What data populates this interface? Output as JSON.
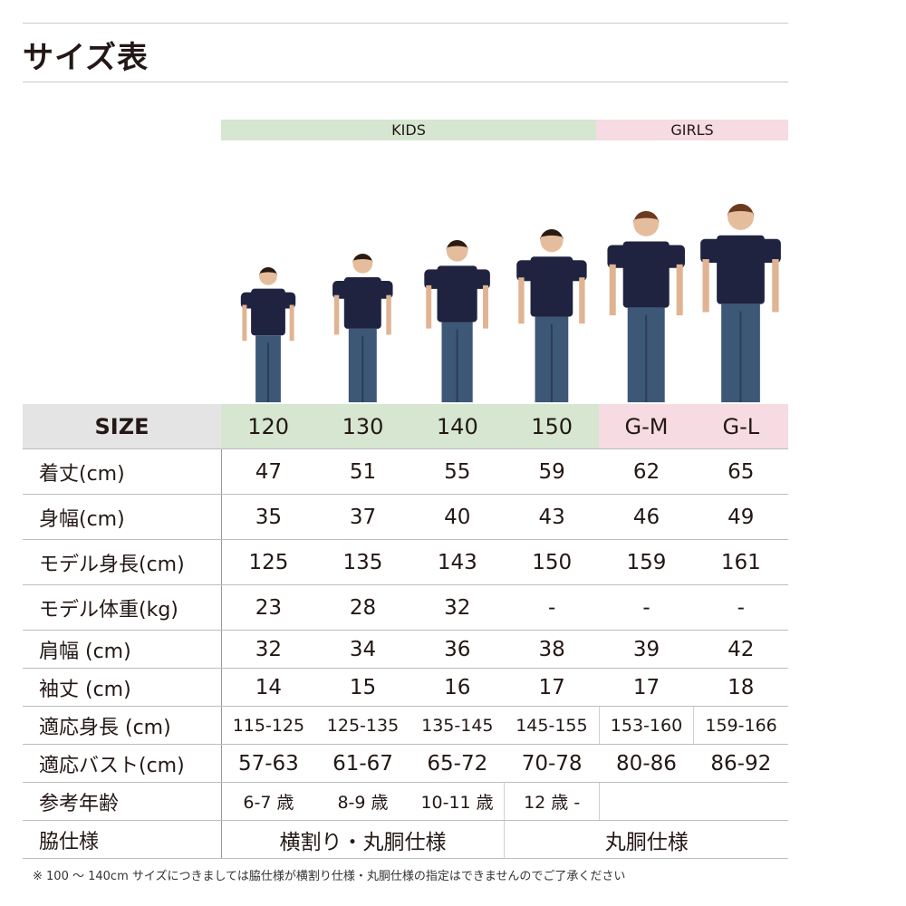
{
  "title": "サイズ表",
  "groups": {
    "kids": "KIDS",
    "girls": "GIRLS"
  },
  "colors": {
    "kids": "#d6e6d0",
    "girls": "#f6dbe3",
    "size_header": "#e4e4e4",
    "shirt": "#1f2340",
    "jeans": "#3d5777"
  },
  "table": {
    "size_label": "SIZE",
    "sizes": [
      "120",
      "130",
      "140",
      "150",
      "G-M",
      "G-L"
    ],
    "rows": [
      {
        "label": "着丈(cm)",
        "values": [
          "47",
          "51",
          "55",
          "59",
          "62",
          "65"
        ]
      },
      {
        "label": "身幅(cm)",
        "values": [
          "35",
          "37",
          "40",
          "43",
          "46",
          "49"
        ]
      },
      {
        "label": "モデル身長(cm)",
        "values": [
          "125",
          "135",
          "143",
          "150",
          "159",
          "161"
        ]
      },
      {
        "label": "モデル体重(kg)",
        "values": [
          "23",
          "28",
          "32",
          "-",
          "-",
          "-"
        ]
      },
      {
        "label": "肩幅 (cm)",
        "values": [
          "32",
          "34",
          "36",
          "38",
          "39",
          "42"
        ]
      },
      {
        "label": "袖丈 (cm)",
        "values": [
          "14",
          "15",
          "16",
          "17",
          "17",
          "18"
        ]
      },
      {
        "label": "適応身長 (cm)",
        "values": [
          "115-125",
          "125-135",
          "135-145",
          "145-155",
          "153-160",
          "159-166"
        ]
      },
      {
        "label": "適応バスト(cm)",
        "values": [
          "57-63",
          "61-67",
          "65-72",
          "70-78",
          "80-86",
          "86-92"
        ]
      },
      {
        "label": "参考年齢",
        "values": [
          "6-7 歳",
          "8-9 歳",
          "10-11 歳",
          "12 歳 -"
        ]
      },
      {
        "label": "脇仕様",
        "values": [
          "横割り・丸胴仕様",
          "丸胴仕様"
        ]
      }
    ]
  },
  "note": "※ 100 〜 140cm サイズにつきましては脇仕様が横割り仕様・丸胴仕様の指定はできませんのでご了承ください"
}
